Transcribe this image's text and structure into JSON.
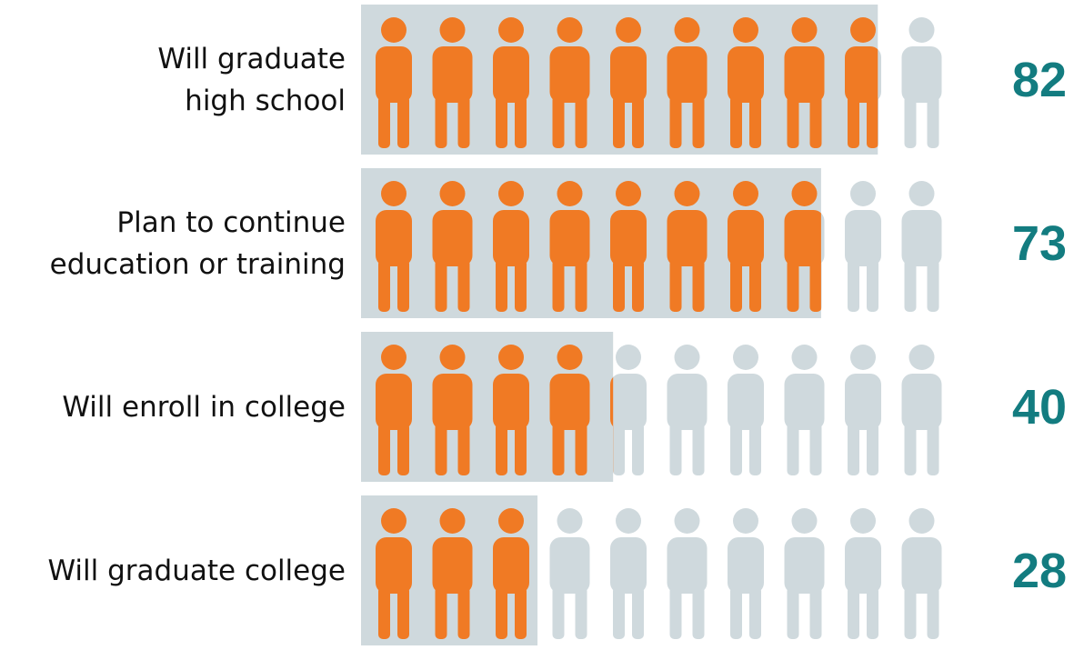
{
  "chart_data": {
    "type": "bar",
    "categories": [
      "Will graduate\nhigh school",
      "Plan to continue\neducation or training",
      "Will enroll in college",
      "Will graduate college"
    ],
    "values": [
      82,
      73,
      40,
      28
    ],
    "xlim": [
      0,
      100
    ],
    "color": "#f07a24",
    "background_color": "#cfd9dd",
    "label_color": "#137c80"
  }
}
